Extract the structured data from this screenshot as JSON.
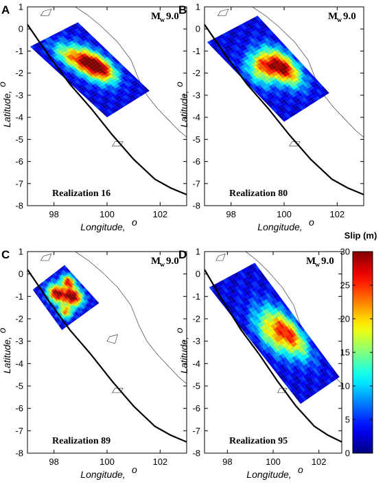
{
  "figure": {
    "colorbar": {
      "label": "Slip (m)",
      "ticks": [
        "0",
        "5",
        "10",
        "15",
        "20",
        "25",
        "30"
      ],
      "range": [
        0,
        30
      ],
      "colormap": "jet"
    },
    "panels": [
      {
        "letter": "A",
        "magnitude_main": "M",
        "magnitude_sub": "w",
        "magnitude_value": "9.0",
        "realization": "Realization 16",
        "xlabel": "Longitude,",
        "ylabel": "Latitude,",
        "degree_mark": "o",
        "xticks": [
          "98",
          "100",
          "102"
        ],
        "yticks": [
          "0",
          "-1",
          "-2",
          "-3",
          "-4",
          "-5",
          "-6",
          "-7",
          "-8"
        ],
        "slip_patch": {
          "corners_lonlat": [
            [
              98.9,
              0.3
            ],
            [
              101.6,
              -2.8
            ],
            [
              100.0,
              -4.0
            ],
            [
              97.1,
              -0.8
            ]
          ],
          "hotspots": [
            [
              0.45,
              0.45,
              0.16,
              26
            ],
            [
              0.3,
              0.55,
              0.12,
              12
            ],
            [
              0.65,
              0.25,
              0.12,
              10
            ]
          ]
        }
      },
      {
        "letter": "B",
        "magnitude_main": "M",
        "magnitude_sub": "w",
        "magnitude_value": "9.0",
        "realization": "Realization 80",
        "xlabel": "Longitude,",
        "ylabel": "Latitude,",
        "degree_mark": "o",
        "xticks": [
          "98",
          "100",
          "102"
        ],
        "yticks": [
          "0",
          "-1",
          "-2",
          "-3",
          "-4",
          "-5",
          "-6",
          "-7",
          "-8"
        ],
        "slip_patch": {
          "corners_lonlat": [
            [
              99.0,
              0.6
            ],
            [
              101.7,
              -2.9
            ],
            [
              100.0,
              -4.2
            ],
            [
              97.1,
              -0.6
            ]
          ],
          "hotspots": [
            [
              0.32,
              0.55,
              0.15,
              27
            ],
            [
              0.55,
              0.45,
              0.1,
              14
            ],
            [
              0.75,
              0.5,
              0.12,
              10
            ]
          ]
        }
      },
      {
        "letter": "C",
        "magnitude_main": "M",
        "magnitude_sub": "w",
        "magnitude_value": "9.0",
        "realization": "Realization 89",
        "xlabel": "Longitude,",
        "ylabel": "Latitude,",
        "degree_mark": "o",
        "xticks": [
          "98",
          "100",
          "102"
        ],
        "yticks": [
          "0",
          "-1",
          "-2",
          "-3",
          "-4",
          "-5",
          "-6",
          "-7",
          "-8"
        ],
        "slip_patch": {
          "corners_lonlat": [
            [
              98.4,
              0.4
            ],
            [
              99.7,
              -1.3
            ],
            [
              98.3,
              -2.5
            ],
            [
              97.2,
              -0.7
            ]
          ],
          "hotspots": [
            [
              0.35,
              0.6,
              0.14,
              28
            ],
            [
              0.6,
              0.35,
              0.14,
              26
            ],
            [
              0.2,
              0.3,
              0.1,
              22
            ],
            [
              0.7,
              0.75,
              0.1,
              18
            ]
          ]
        }
      },
      {
        "letter": "D",
        "magnitude_main": "M",
        "magnitude_sub": "w",
        "magnitude_value": "9.0",
        "realization": "Realization 95",
        "xlabel": "Longitude,",
        "ylabel": "Latitude,",
        "degree_mark": "o",
        "xticks": [
          "98",
          "100",
          "102"
        ],
        "yticks": [
          "0",
          "-1",
          "-2",
          "-3",
          "-4",
          "-5",
          "-6",
          "-7",
          "-8"
        ],
        "slip_patch": {
          "corners_lonlat": [
            [
              99.2,
              0.5
            ],
            [
              102.9,
              -4.6
            ],
            [
              101.2,
              -5.8
            ],
            [
              97.2,
              -0.6
            ]
          ],
          "hotspots": [
            [
              0.28,
              0.55,
              0.14,
              19
            ],
            [
              0.5,
              0.5,
              0.14,
              12
            ],
            [
              0.7,
              0.5,
              0.12,
              8
            ]
          ]
        }
      }
    ]
  }
}
